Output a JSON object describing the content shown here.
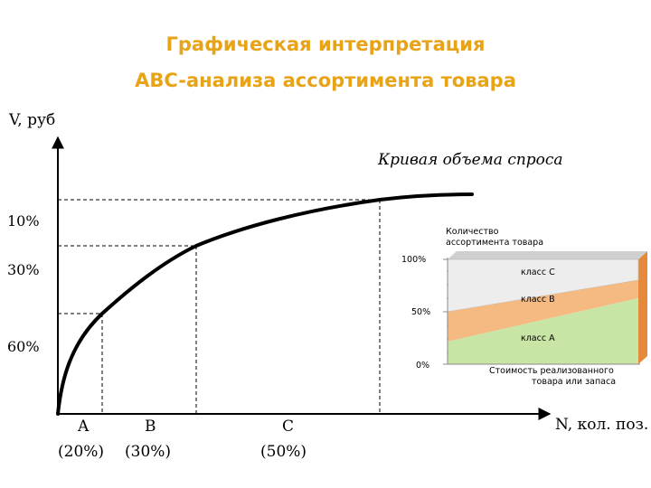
{
  "title": {
    "line1": "Графическая интерпретация",
    "line2": "ABC-анализа ассортимента товара"
  },
  "main_chart": {
    "y_axis_label": "V, руб",
    "x_axis_label": "N, кол. поз.",
    "curve_label": "Кривая объема спроса",
    "y_ticks": [
      "10%",
      "30%",
      "60%"
    ],
    "x_groups": [
      {
        "letter": "A",
        "share": "(20%)"
      },
      {
        "letter": "B",
        "share": "(30%)"
      },
      {
        "letter": "C",
        "share": "(50%)"
      }
    ]
  },
  "inset_chart": {
    "y_title_line1": "Количество",
    "y_title_line2": "ассортимента товара",
    "y_ticks": [
      "100%",
      "50%",
      "0%"
    ],
    "x_title_line1": "Стоимость реализованного",
    "x_title_line2": "товара или запаса",
    "classes": [
      {
        "name": "класс С",
        "color": "#EDEDED"
      },
      {
        "name": "класс В",
        "color": "#F5B982"
      },
      {
        "name": "класс А",
        "color": "#C9E5A6"
      }
    ],
    "side_color": "#E58A3A"
  },
  "colors": {
    "title": "#E8A317",
    "axis": "#000000"
  }
}
